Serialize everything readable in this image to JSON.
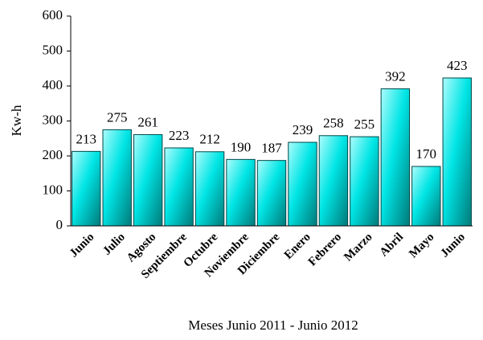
{
  "chart_data": {
    "type": "bar",
    "categories": [
      "Junio",
      "Julio",
      "Agosto",
      "Septiembre",
      "Octubre",
      "Noviembre",
      "Diciembre",
      "Enero",
      "Febrero",
      "Marzo",
      "Abril",
      "Mayo",
      "Junio"
    ],
    "values": [
      213,
      275,
      261,
      223,
      212,
      190,
      187,
      239,
      258,
      255,
      392,
      170,
      423
    ],
    "color": "#00e5e5",
    "y_label": "Kw-h",
    "x_label": "Meses Junio 2011 - Junio 2012",
    "ylim": [
      0,
      600
    ],
    "yticks": [
      0,
      100,
      200,
      300,
      400,
      500,
      600
    ],
    "grid": false
  }
}
